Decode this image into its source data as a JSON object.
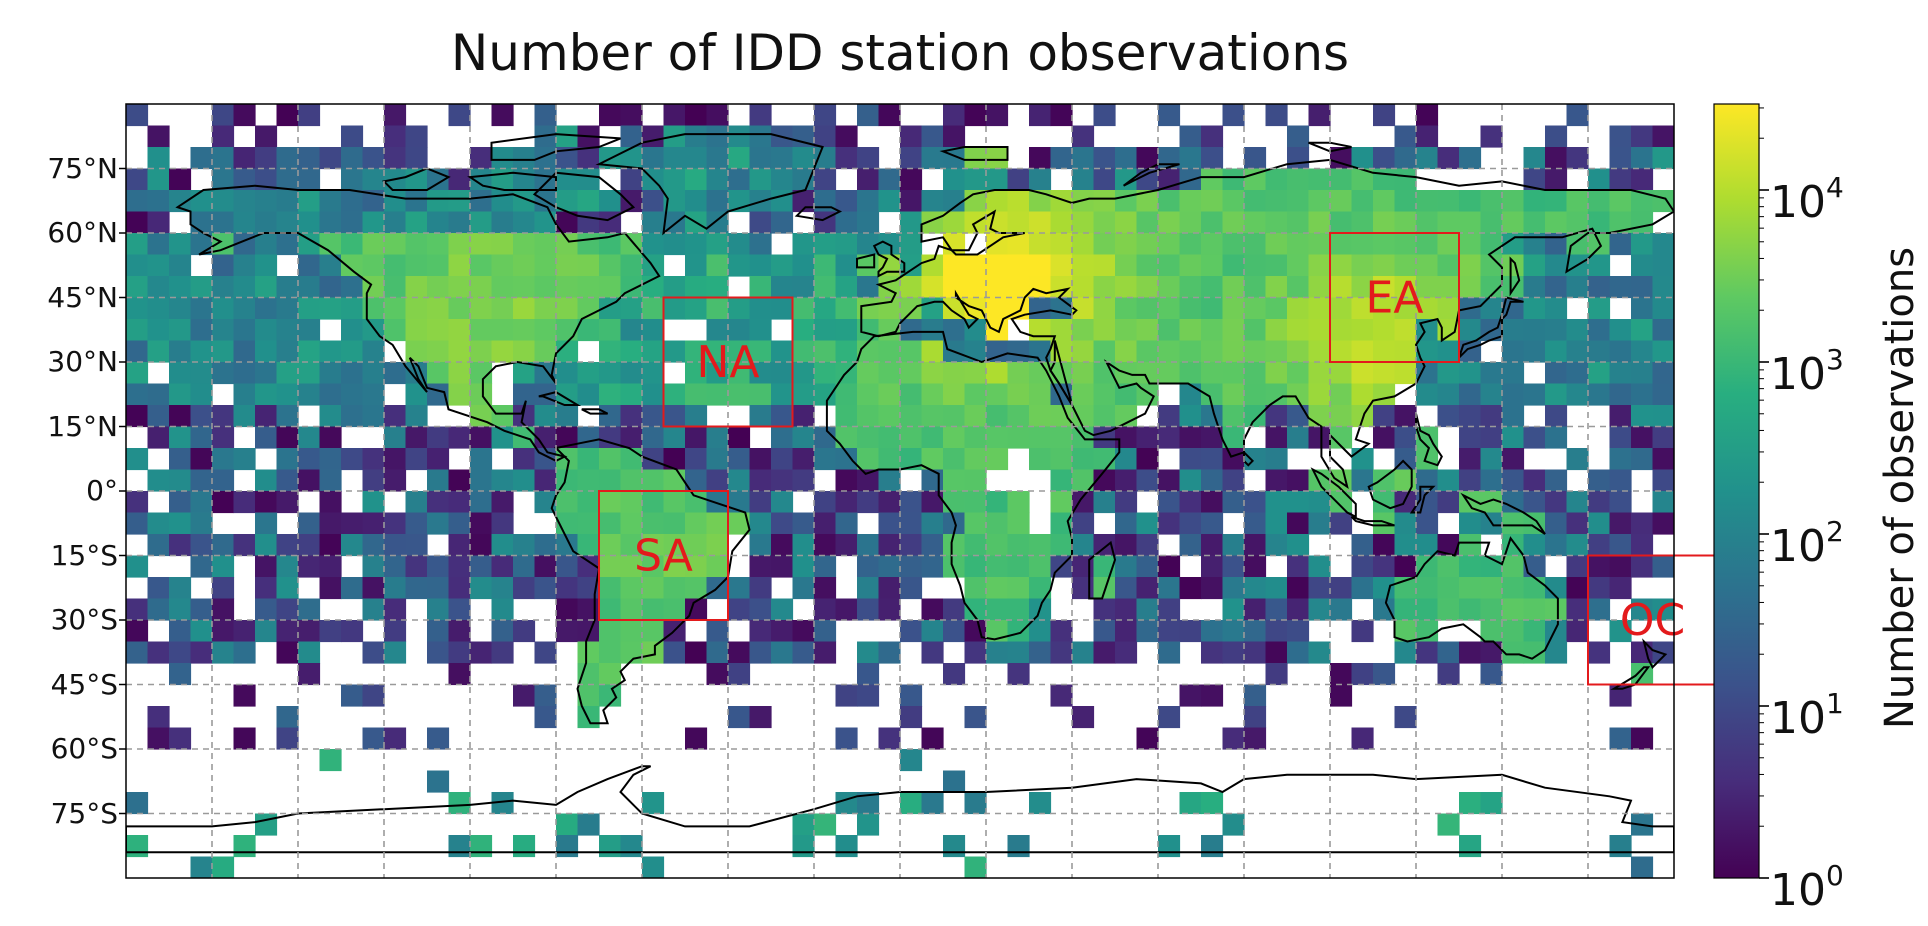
{
  "title": "Number of IDD station observations",
  "lat_ticks": [
    "75°N",
    "60°N",
    "45°N",
    "30°N",
    "15°N",
    "0°",
    "15°S",
    "30°S",
    "45°S",
    "60°S",
    "75°S"
  ],
  "colorbar": {
    "label": "Number of observations",
    "scale": "log",
    "ticks": [
      {
        "base": "10",
        "exp": "0"
      },
      {
        "base": "10",
        "exp": "1"
      },
      {
        "base": "10",
        "exp": "2"
      },
      {
        "base": "10",
        "exp": "3"
      },
      {
        "base": "10",
        "exp": "4"
      }
    ],
    "colormap": "viridis"
  },
  "regions": [
    {
      "label": "NA",
      "lon": [
        -55,
        -25
      ],
      "lat": [
        15,
        45
      ]
    },
    {
      "label": "SA",
      "lon": [
        -70,
        -40
      ],
      "lat": [
        -30,
        0
      ]
    },
    {
      "label": "EA",
      "lon": [
        100,
        130
      ],
      "lat": [
        30,
        60
      ]
    },
    {
      "label": "OC",
      "lon": [
        160,
        190
      ],
      "lat": [
        -45,
        -15
      ]
    }
  ],
  "colors": {
    "region_box": "#e31a1c",
    "grid": "#9a9a9a",
    "coastline": "#000000"
  }
}
